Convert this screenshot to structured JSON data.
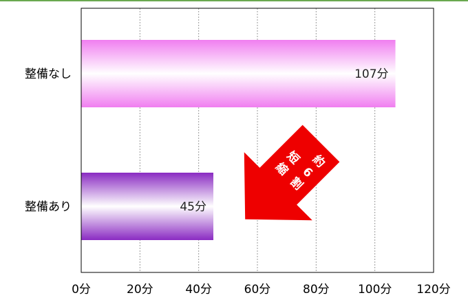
{
  "chart_data": {
    "type": "bar",
    "orientation": "horizontal",
    "categories": [
      "整備なし",
      "整備あり"
    ],
    "values": [
      107,
      45
    ],
    "data_labels": [
      "107分",
      "45分"
    ],
    "xlim": [
      0,
      120
    ],
    "x_ticks": [
      0,
      20,
      40,
      60,
      80,
      100,
      120
    ],
    "x_tick_labels": [
      "0分",
      "20分",
      "40分",
      "60分",
      "80分",
      "100分",
      "120分"
    ],
    "title": "",
    "xlabel": "",
    "ylabel": "",
    "grid": "vertical dashed",
    "legend": "none",
    "bar_colors": [
      "#f07ef0",
      "#8a2bc2"
    ],
    "annotation": {
      "lines": [
        "約",
        "6",
        "割",
        "短",
        "縮"
      ],
      "color": "#ee0000",
      "shape": "arrow-down-left"
    }
  },
  "colors": {
    "frame": "#000000",
    "grid": "#9a9a9a",
    "accent_line": "#6aa84f"
  }
}
